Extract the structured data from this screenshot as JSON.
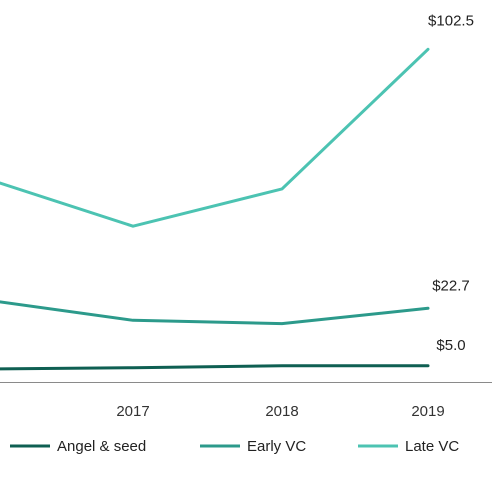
{
  "chart_data": {
    "type": "line",
    "categories": [
      "",
      "2017",
      "2018",
      "2019"
    ],
    "series": [
      {
        "name": "Angel & seed",
        "color": "#0f5f52",
        "values": [
          4.0,
          4.4,
          5.0,
          5.0
        ],
        "end_label": "$5.0"
      },
      {
        "name": "Early VC",
        "color": "#2c9a8b",
        "values": [
          25.0,
          19.0,
          18.0,
          22.7
        ],
        "end_label": "$22.7"
      },
      {
        "name": "Late VC",
        "color": "#4cc3b2",
        "values": [
          62.0,
          48.0,
          59.5,
          102.5
        ],
        "end_label": "$102.5"
      }
    ],
    "ylim": [
      0,
      110
    ],
    "grid": false,
    "legend_position": "bottom",
    "title": "",
    "xlabel": "",
    "ylabel": ""
  }
}
